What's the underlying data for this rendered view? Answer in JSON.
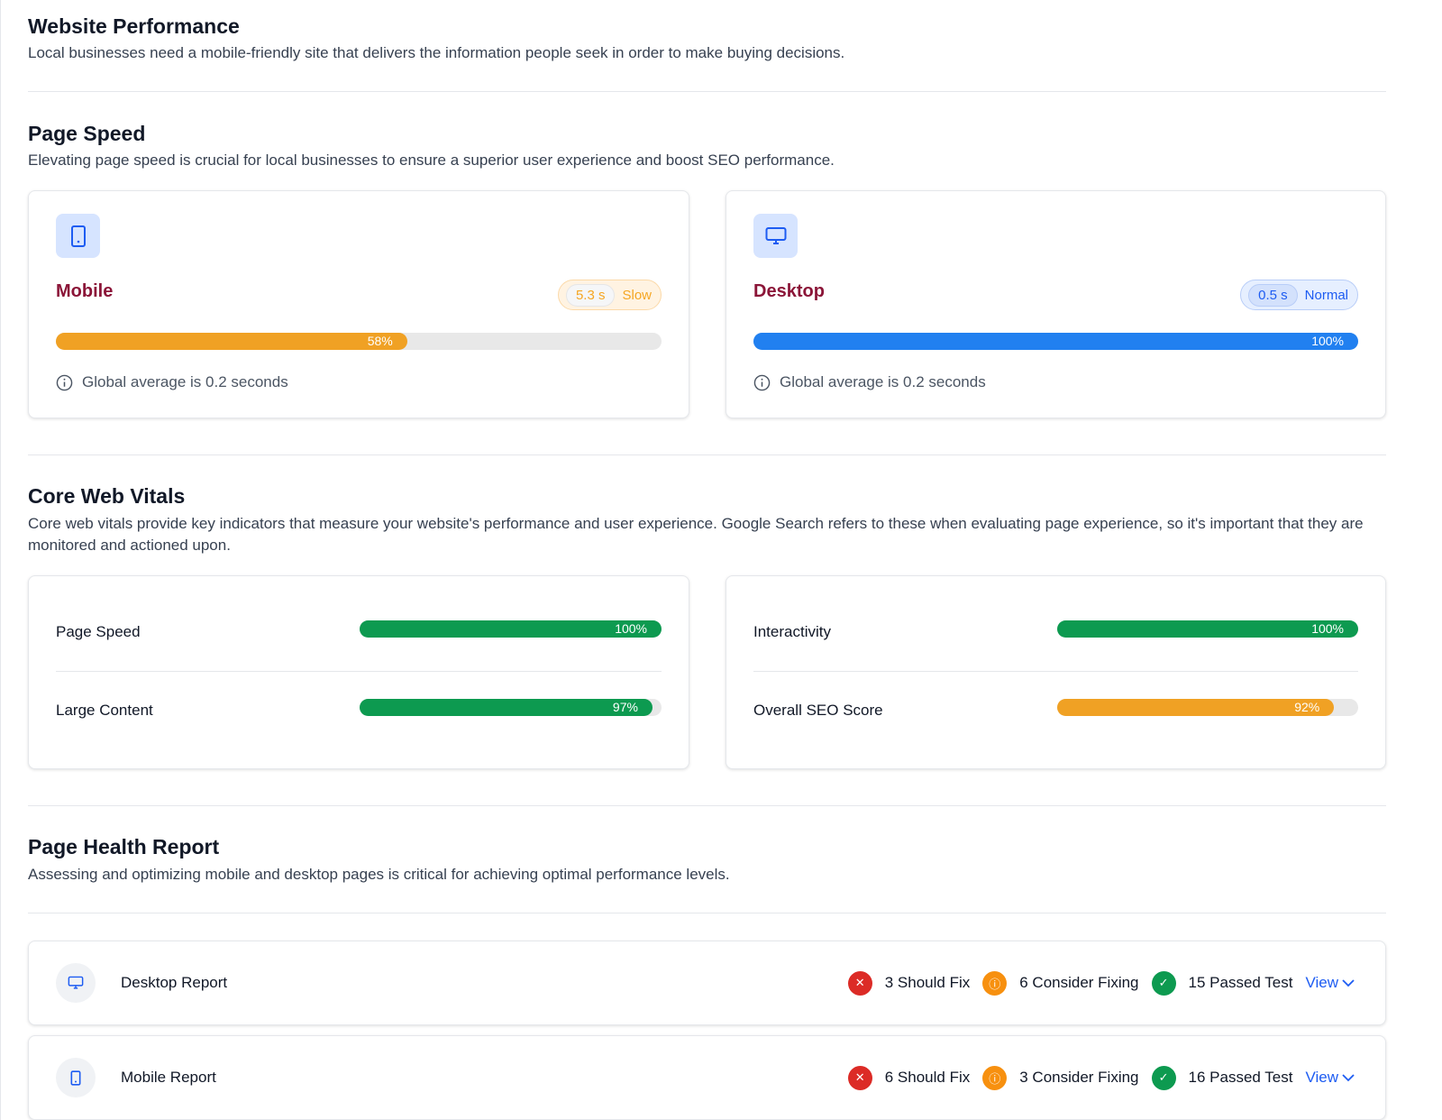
{
  "website": {
    "title": "Website Performance",
    "description": "Local businesses need a mobile-friendly site that delivers the information people seek in order to make buying decisions."
  },
  "page_speed": {
    "title": "Page Speed",
    "description": "Elevating page speed is crucial for local businesses to ensure a superior user experience and boost SEO performance.",
    "cards": [
      {
        "icon": "mobile-phone-icon",
        "title": "Mobile",
        "time": "5.3 s",
        "status": "Slow",
        "status_color": "#f5a623",
        "percent": 58,
        "percent_label": "58%",
        "bar_color": "#f0a124",
        "note": "Global average is 0.2 seconds"
      },
      {
        "icon": "desktop-monitor-icon",
        "title": "Desktop",
        "time": "0.5 s",
        "status": "Normal",
        "status_color": "#1d5cf2",
        "percent": 100,
        "percent_label": "100%",
        "bar_color": "#2180f0",
        "note": "Global average is 0.2 seconds"
      }
    ]
  },
  "core_web_vitals": {
    "title": "Core Web Vitals",
    "description": "Core web vitals provide key indicators that measure your website's performance and user experience. Google Search refers to these when evaluating page experience, so it's important that they are monitored and actioned upon.",
    "metrics": [
      {
        "label": "Page Speed",
        "percent": 100,
        "percent_label": "100%",
        "color": "#0d9a50"
      },
      {
        "label": "Large Content",
        "percent": 97,
        "percent_label": "97%",
        "color": "#0d9a50"
      },
      {
        "label": "Interactivity",
        "percent": 100,
        "percent_label": "100%",
        "color": "#0d9a50"
      },
      {
        "label": "Overall SEO Score",
        "percent": 92,
        "percent_label": "92%",
        "color": "#f0a124"
      }
    ]
  },
  "page_health": {
    "title": "Page Health Report",
    "description": "Assessing and optimizing mobile and desktop pages is critical for achieving optimal performance levels.",
    "reports": [
      {
        "icon": "desktop-monitor-icon",
        "label": "Desktop Report",
        "should_fix": "3 Should Fix",
        "consider_fixing": "6 Consider Fixing",
        "passed": "15 Passed Test",
        "view": "View"
      },
      {
        "icon": "mobile-phone-icon",
        "label": "Mobile Report",
        "should_fix": "6 Should Fix",
        "consider_fixing": "3 Consider Fixing",
        "passed": "16 Passed Test",
        "view": "View"
      }
    ]
  },
  "colors": {
    "error": "#dc2b26",
    "warning": "#f7900f",
    "success": "#0d9a50",
    "link": "#1d5cf2"
  }
}
